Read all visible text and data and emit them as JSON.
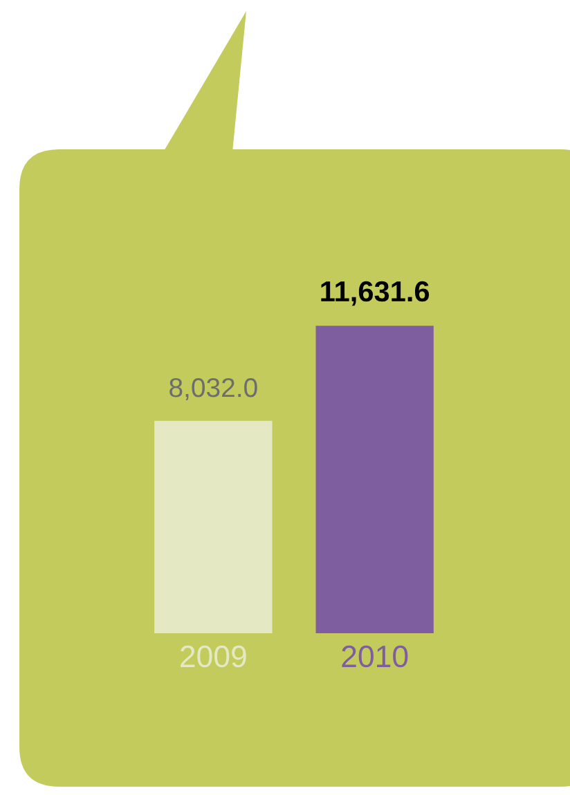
{
  "chart_data": {
    "type": "bar",
    "categories": [
      "2009",
      "2010"
    ],
    "values": [
      8032.0,
      11631.6
    ],
    "colors": [
      "#e4e9c4",
      "#7e5e9f"
    ],
    "value_labels": [
      "8,032.0",
      "11,631.6"
    ],
    "tick_labels": "x",
    "grid": false,
    "legend": false
  }
}
